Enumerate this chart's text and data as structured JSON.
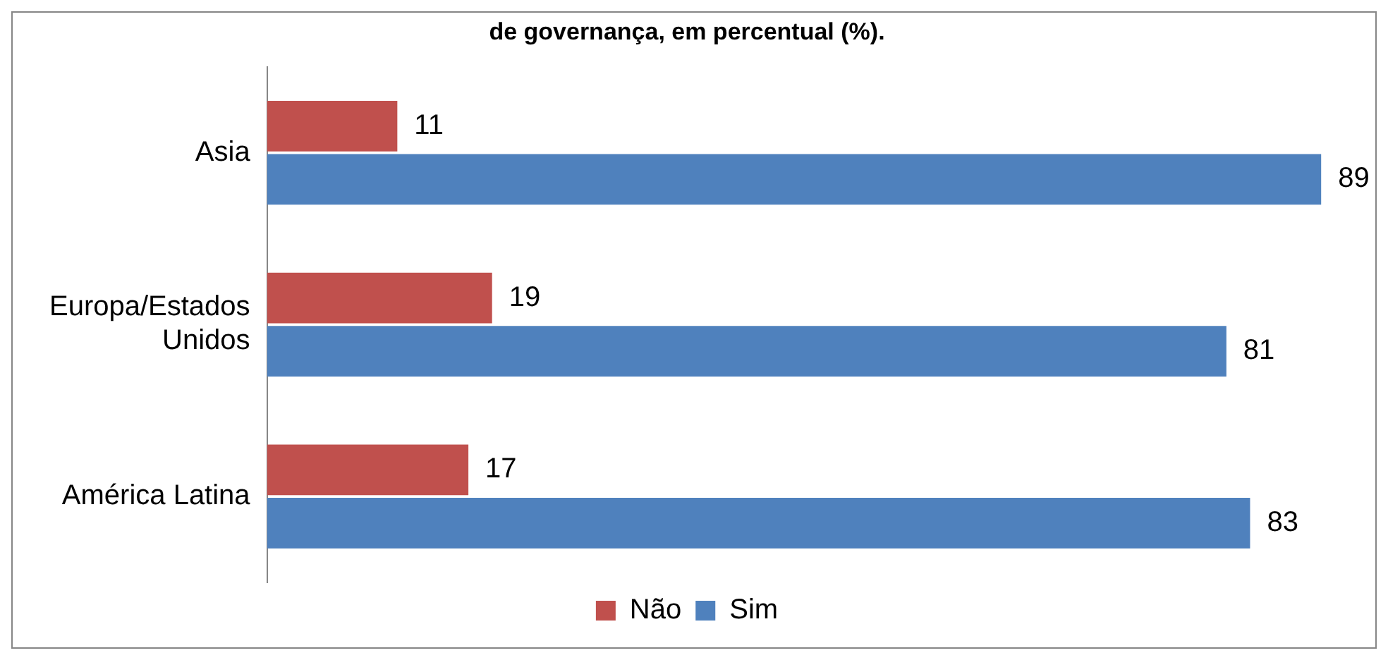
{
  "chart_data": {
    "type": "bar",
    "orientation": "horizontal",
    "title": "de governança, em percentual (%).",
    "categories": [
      "Asia",
      "Europa/Estados Unidos",
      "América Latina"
    ],
    "series": [
      {
        "name": "Não",
        "color": "#c0504d",
        "values": [
          11,
          19,
          17
        ]
      },
      {
        "name": "Sim",
        "color": "#4f81bd",
        "values": [
          89,
          81,
          83
        ]
      }
    ],
    "data_labels": true,
    "legend": "bottom",
    "grid": false
  }
}
